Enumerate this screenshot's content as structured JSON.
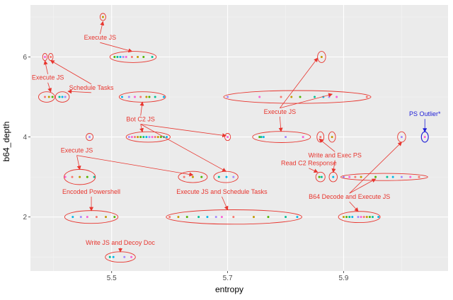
{
  "chart_data": {
    "type": "scatter",
    "xlabel": "entropy",
    "ylabel": "b64_depth",
    "xlim": [
      5.36,
      6.08
    ],
    "ylim": [
      0.65,
      7.3
    ],
    "x_ticks": [
      5.5,
      5.7,
      5.9
    ],
    "x_tick_labels": [
      "5.5",
      "5.7",
      "5.9"
    ],
    "y_ticks": [
      2,
      4,
      6
    ],
    "y_tick_labels": [
      "2",
      "4",
      "6"
    ],
    "grid": true,
    "legend": "none",
    "colors": {
      "panel": "#ebebeb",
      "grid_major": "#ffffff",
      "grid_minor": "#f5f5f5",
      "annotation": "#e8352e",
      "outlier": "#1d1dd6",
      "point_palette": [
        "#f8766d",
        "#c49a00",
        "#53b400",
        "#00c094",
        "#00b6eb",
        "#a58aff",
        "#fb61d7"
      ]
    },
    "points": [
      {
        "x": 5.385,
        "y": 5
      },
      {
        "x": 5.392,
        "y": 5
      },
      {
        "x": 5.398,
        "y": 5
      },
      {
        "x": 5.41,
        "y": 5
      },
      {
        "x": 5.415,
        "y": 5
      },
      {
        "x": 5.42,
        "y": 5
      },
      {
        "x": 5.385,
        "y": 6
      },
      {
        "x": 5.395,
        "y": 6
      },
      {
        "x": 5.485,
        "y": 7
      },
      {
        "x": 5.505,
        "y": 6
      },
      {
        "x": 5.51,
        "y": 6
      },
      {
        "x": 5.515,
        "y": 6
      },
      {
        "x": 5.52,
        "y": 6
      },
      {
        "x": 5.525,
        "y": 6
      },
      {
        "x": 5.535,
        "y": 6
      },
      {
        "x": 5.545,
        "y": 6
      },
      {
        "x": 5.555,
        "y": 6
      },
      {
        "x": 5.57,
        "y": 6
      },
      {
        "x": 5.518,
        "y": 5
      },
      {
        "x": 5.53,
        "y": 5
      },
      {
        "x": 5.54,
        "y": 5
      },
      {
        "x": 5.55,
        "y": 5
      },
      {
        "x": 5.56,
        "y": 5
      },
      {
        "x": 5.565,
        "y": 5
      },
      {
        "x": 5.575,
        "y": 5
      },
      {
        "x": 5.59,
        "y": 5
      },
      {
        "x": 5.53,
        "y": 4
      },
      {
        "x": 5.535,
        "y": 4
      },
      {
        "x": 5.54,
        "y": 4
      },
      {
        "x": 5.545,
        "y": 4
      },
      {
        "x": 5.55,
        "y": 4
      },
      {
        "x": 5.555,
        "y": 4
      },
      {
        "x": 5.56,
        "y": 4
      },
      {
        "x": 5.565,
        "y": 4
      },
      {
        "x": 5.57,
        "y": 4
      },
      {
        "x": 5.575,
        "y": 4
      },
      {
        "x": 5.58,
        "y": 4
      },
      {
        "x": 5.585,
        "y": 4
      },
      {
        "x": 5.59,
        "y": 4
      },
      {
        "x": 5.595,
        "y": 4
      },
      {
        "x": 5.462,
        "y": 4
      },
      {
        "x": 5.42,
        "y": 3
      },
      {
        "x": 5.432,
        "y": 3
      },
      {
        "x": 5.445,
        "y": 3
      },
      {
        "x": 5.458,
        "y": 3
      },
      {
        "x": 5.47,
        "y": 3
      },
      {
        "x": 5.433,
        "y": 2
      },
      {
        "x": 5.447,
        "y": 2
      },
      {
        "x": 5.458,
        "y": 2
      },
      {
        "x": 5.474,
        "y": 2
      },
      {
        "x": 5.49,
        "y": 2
      },
      {
        "x": 5.505,
        "y": 2
      },
      {
        "x": 5.497,
        "y": 1
      },
      {
        "x": 5.503,
        "y": 1
      },
      {
        "x": 5.522,
        "y": 1
      },
      {
        "x": 5.534,
        "y": 1
      },
      {
        "x": 5.625,
        "y": 3
      },
      {
        "x": 5.64,
        "y": 3
      },
      {
        "x": 5.655,
        "y": 3
      },
      {
        "x": 5.685,
        "y": 3
      },
      {
        "x": 5.698,
        "y": 3
      },
      {
        "x": 5.71,
        "y": 3
      },
      {
        "x": 5.7,
        "y": 4
      },
      {
        "x": 5.6,
        "y": 2
      },
      {
        "x": 5.615,
        "y": 2
      },
      {
        "x": 5.63,
        "y": 2
      },
      {
        "x": 5.65,
        "y": 2
      },
      {
        "x": 5.665,
        "y": 2
      },
      {
        "x": 5.68,
        "y": 2
      },
      {
        "x": 5.69,
        "y": 2
      },
      {
        "x": 5.71,
        "y": 2
      },
      {
        "x": 5.745,
        "y": 2
      },
      {
        "x": 5.77,
        "y": 2
      },
      {
        "x": 5.8,
        "y": 2
      },
      {
        "x": 5.82,
        "y": 2
      },
      {
        "x": 5.7,
        "y": 5
      },
      {
        "x": 5.755,
        "y": 5
      },
      {
        "x": 5.792,
        "y": 5
      },
      {
        "x": 5.81,
        "y": 5
      },
      {
        "x": 5.825,
        "y": 5
      },
      {
        "x": 5.85,
        "y": 5
      },
      {
        "x": 5.865,
        "y": 5
      },
      {
        "x": 5.875,
        "y": 5
      },
      {
        "x": 5.888,
        "y": 5
      },
      {
        "x": 5.94,
        "y": 5
      },
      {
        "x": 5.862,
        "y": 6
      },
      {
        "x": 5.755,
        "y": 4
      },
      {
        "x": 5.758,
        "y": 4
      },
      {
        "x": 5.762,
        "y": 4
      },
      {
        "x": 5.8,
        "y": 4
      },
      {
        "x": 5.83,
        "y": 4
      },
      {
        "x": 5.86,
        "y": 4
      },
      {
        "x": 5.88,
        "y": 4
      },
      {
        "x": 5.858,
        "y": 3
      },
      {
        "x": 5.862,
        "y": 3
      },
      {
        "x": 5.882,
        "y": 3
      },
      {
        "x": 5.9,
        "y": 3
      },
      {
        "x": 5.91,
        "y": 3
      },
      {
        "x": 5.92,
        "y": 3
      },
      {
        "x": 5.93,
        "y": 3
      },
      {
        "x": 5.955,
        "y": 3
      },
      {
        "x": 5.975,
        "y": 3
      },
      {
        "x": 5.985,
        "y": 3
      },
      {
        "x": 6.0,
        "y": 3
      },
      {
        "x": 6.015,
        "y": 3
      },
      {
        "x": 6.03,
        "y": 3
      },
      {
        "x": 5.9,
        "y": 2
      },
      {
        "x": 5.905,
        "y": 2
      },
      {
        "x": 5.91,
        "y": 2
      },
      {
        "x": 5.915,
        "y": 2
      },
      {
        "x": 5.925,
        "y": 2
      },
      {
        "x": 5.93,
        "y": 2
      },
      {
        "x": 5.935,
        "y": 2
      },
      {
        "x": 5.94,
        "y": 2
      },
      {
        "x": 5.945,
        "y": 2
      },
      {
        "x": 5.95,
        "y": 2
      },
      {
        "x": 5.96,
        "y": 2
      },
      {
        "x": 6.0,
        "y": 4
      },
      {
        "x": 6.04,
        "y": 4
      }
    ],
    "ellipses": [
      {
        "cx": 5.388,
        "cy": 5,
        "rx": 0.014,
        "ry": 0.13
      },
      {
        "cx": 5.415,
        "cy": 5,
        "rx": 0.012,
        "ry": 0.13
      },
      {
        "cx": 5.385,
        "cy": 6,
        "rx": 0.004,
        "ry": 0.09
      },
      {
        "cx": 5.395,
        "cy": 6,
        "rx": 0.004,
        "ry": 0.09
      },
      {
        "cx": 5.485,
        "cy": 7,
        "rx": 0.005,
        "ry": 0.09
      },
      {
        "cx": 5.537,
        "cy": 6,
        "rx": 0.04,
        "ry": 0.14
      },
      {
        "cx": 5.553,
        "cy": 5,
        "rx": 0.04,
        "ry": 0.13
      },
      {
        "cx": 5.563,
        "cy": 4,
        "rx": 0.038,
        "ry": 0.13
      },
      {
        "cx": 5.462,
        "cy": 4,
        "rx": 0.006,
        "ry": 0.09
      },
      {
        "cx": 5.445,
        "cy": 3,
        "rx": 0.027,
        "ry": 0.19
      },
      {
        "cx": 5.465,
        "cy": 2,
        "rx": 0.046,
        "ry": 0.16
      },
      {
        "cx": 5.515,
        "cy": 1,
        "rx": 0.026,
        "ry": 0.13
      },
      {
        "cx": 5.64,
        "cy": 3,
        "rx": 0.025,
        "ry": 0.14
      },
      {
        "cx": 5.697,
        "cy": 3,
        "rx": 0.021,
        "ry": 0.14
      },
      {
        "cx": 5.7,
        "cy": 4,
        "rx": 0.005,
        "ry": 0.09
      },
      {
        "cx": 5.711,
        "cy": 2,
        "rx": 0.117,
        "ry": 0.18
      },
      {
        "cx": 5.82,
        "cy": 5,
        "rx": 0.127,
        "ry": 0.16
      },
      {
        "cx": 5.862,
        "cy": 6,
        "rx": 0.007,
        "ry": 0.14
      },
      {
        "cx": 5.793,
        "cy": 4,
        "rx": 0.05,
        "ry": 0.14
      },
      {
        "cx": 5.86,
        "cy": 4,
        "rx": 0.006,
        "ry": 0.13
      },
      {
        "cx": 5.88,
        "cy": 4,
        "rx": 0.006,
        "ry": 0.13
      },
      {
        "cx": 5.86,
        "cy": 3,
        "rx": 0.008,
        "ry": 0.12
      },
      {
        "cx": 5.882,
        "cy": 3,
        "rx": 0.007,
        "ry": 0.12
      },
      {
        "cx": 5.97,
        "cy": 3,
        "rx": 0.075,
        "ry": 0.09
      },
      {
        "cx": 5.927,
        "cy": 2,
        "rx": 0.036,
        "ry": 0.14
      },
      {
        "cx": 6.0,
        "cy": 4,
        "rx": 0.007,
        "ry": 0.13
      }
    ],
    "outlier_ellipse": {
      "cx": 6.04,
      "cy": 4,
      "rx": 0.006,
      "ry": 0.13
    },
    "annotations": [
      {
        "text": "Execute JS",
        "x": 5.48,
        "y": 6.43,
        "arrows": [
          [
            5.485,
            6.88
          ],
          [
            5.535,
            6.14
          ]
        ]
      },
      {
        "text": "Execute JS",
        "x": 5.39,
        "y": 5.43,
        "arrows": [
          [
            5.385,
            5.9
          ],
          [
            5.395,
            5.13
          ]
        ]
      },
      {
        "text": "Schedule Tasks",
        "x": 5.465,
        "y": 5.18,
        "arrows": [
          [
            5.395,
            5.91
          ],
          [
            5.425,
            5.14
          ]
        ]
      },
      {
        "text": "Bot C2 JS",
        "x": 5.55,
        "y": 4.39,
        "arrows": [
          [
            5.553,
            4.87
          ],
          [
            5.553,
            4.13
          ],
          [
            5.697,
            4.03
          ],
          [
            5.697,
            3.14
          ]
        ]
      },
      {
        "text": "Execute JS",
        "x": 5.44,
        "y": 3.61,
        "arrows": [
          [
            5.445,
            3.19
          ],
          [
            5.64,
            3.05
          ]
        ]
      },
      {
        "text": "Encoded Powershell",
        "x": 5.465,
        "y": 2.58,
        "arrows": [
          [
            5.465,
            2.16
          ]
        ]
      },
      {
        "text": "Execute JS and Schedule Tasks",
        "x": 5.69,
        "y": 2.58,
        "arrows": [
          [
            5.7,
            2.18
          ]
        ]
      },
      {
        "text": "Write JS and Decoy Doc",
        "x": 5.515,
        "y": 1.3,
        "arrows": [
          [
            5.515,
            1.13
          ]
        ]
      },
      {
        "text": "Execute JS",
        "x": 5.79,
        "y": 4.58,
        "arrows": [
          [
            5.855,
            5.97
          ],
          [
            5.88,
            5.07
          ],
          [
            5.792,
            4.14
          ]
        ]
      },
      {
        "text": "Write and Exec PS",
        "x": 5.885,
        "y": 3.49,
        "arrows": [
          [
            5.858,
            3.95
          ],
          [
            5.882,
            3.12
          ]
        ]
      },
      {
        "text": "Read C2 Response",
        "x": 5.84,
        "y": 3.29,
        "arrows": [
          [
            5.855,
            3.12
          ]
        ]
      },
      {
        "text": "B64 Decode and Execute JS",
        "x": 5.91,
        "y": 2.45,
        "arrows": [
          [
            6.0,
            3.87
          ],
          [
            5.955,
            2.95
          ],
          [
            5.925,
            2.14
          ]
        ]
      }
    ],
    "outlier_annotation": {
      "text": "PS Outlier*",
      "x": 6.04,
      "y": 4.52,
      "arrows": [
        [
          6.04,
          4.13
        ]
      ]
    }
  }
}
